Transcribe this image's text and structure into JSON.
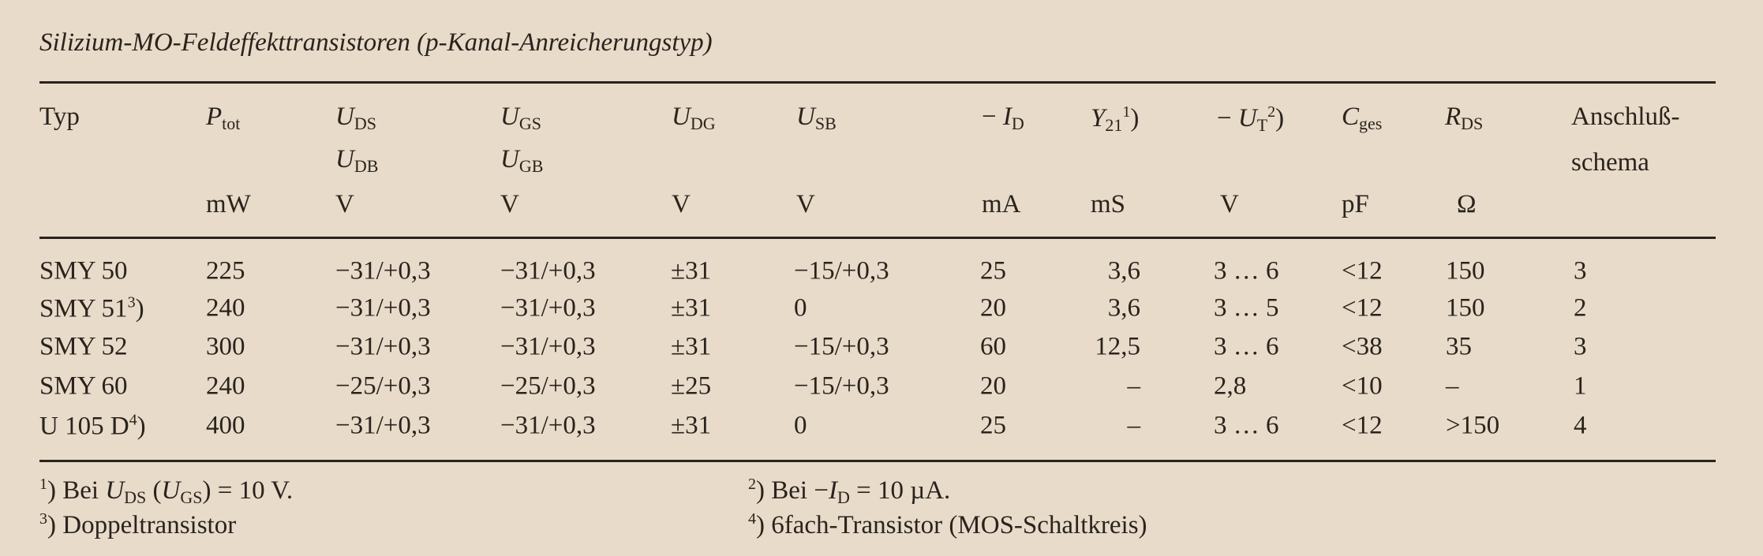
{
  "title": "Silizium-MO-Feldeffekttransistoren (p-Kanal-Anreicherungstyp)",
  "header": {
    "typ": "Typ",
    "ptot": {
      "sym": "P",
      "sub": "tot",
      "unit": "mW"
    },
    "uds": {
      "sym": "U",
      "sub": "DS",
      "sym2": "U",
      "sub2": "DB",
      "unit": "V"
    },
    "ugs": {
      "sym": "U",
      "sub": "GS",
      "sym2": "U",
      "sub2": "GB",
      "unit": "V"
    },
    "udg": {
      "sym": "U",
      "sub": "DG",
      "unit": "V"
    },
    "usb": {
      "sym": "U",
      "sub": "SB",
      "unit": "V"
    },
    "id": {
      "prefix": "−",
      "sym": "I",
      "sub": "D",
      "unit": "mA"
    },
    "y21": {
      "sym": "Y",
      "sub": "21",
      "sup": "1",
      "suffix": ")",
      "unit": "mS"
    },
    "ut": {
      "prefix": "−",
      "sym": "U",
      "sub": "T",
      "sup": "2",
      "suffix": ")",
      "unit": "V"
    },
    "cges": {
      "sym": "C",
      "sub": "ges",
      "unit": "pF"
    },
    "rds": {
      "sym": "R",
      "sub": "DS",
      "unit": "Ω"
    },
    "anschluss": {
      "line1": "Anschluß-",
      "line2": "schema"
    }
  },
  "rows": [
    {
      "typ": "SMY 50",
      "typ_sup": "",
      "ptot": "225",
      "uds": "−31/+0,3",
      "ugs": "−31/+0,3",
      "udg": "±31",
      "usb": "−15/+0,3",
      "id": "25",
      "y21": "3,6",
      "ut": "3 … 6",
      "cges": "<12",
      "rds": "150",
      "schema": "3"
    },
    {
      "typ": "SMY 51",
      "typ_sup": "3",
      "ptot": "240",
      "uds": "−31/+0,3",
      "ugs": "−31/+0,3",
      "udg": "±31",
      "usb": "0",
      "id": "20",
      "y21": "3,6",
      "ut": "3 … 5",
      "cges": "<12",
      "rds": "150",
      "schema": "2"
    },
    {
      "typ": "SMY 52",
      "typ_sup": "",
      "ptot": "300",
      "uds": "−31/+0,3",
      "ugs": "−31/+0,3",
      "udg": "±31",
      "usb": "−15/+0,3",
      "id": "60",
      "y21": "12,5",
      "ut": "3 … 6",
      "cges": "<38",
      "rds": "35",
      "schema": "3"
    },
    {
      "typ": "SMY 60",
      "typ_sup": "",
      "ptot": "240",
      "uds": "−25/+0,3",
      "ugs": "−25/+0,3",
      "udg": "±25",
      "usb": "−15/+0,3",
      "id": "20",
      "y21": "–",
      "ut": "2,8",
      "cges": "<10",
      "rds": "–",
      "schema": "1"
    },
    {
      "typ": "U 105 D",
      "typ_sup": "4",
      "ptot": "400",
      "uds": "−31/+0,3",
      "ugs": "−31/+0,3",
      "udg": "±31",
      "usb": "0",
      "id": "25",
      "y21": "–",
      "ut": "3 … 6",
      "cges": "<12",
      "rds": ">150",
      "schema": "4"
    }
  ],
  "footnotes": {
    "f1": {
      "mark": "1",
      "text_a": "Bei ",
      "sym_a": "U",
      "sub_a": "DS",
      "text_b": " (",
      "sym_b": "U",
      "sub_b": "GS",
      "text_c": ") = 10 V."
    },
    "f2": {
      "mark": "2",
      "text_a": "Bei −",
      "sym_a": "I",
      "sub_a": "D",
      "text_b": " = 10 µA."
    },
    "f3": {
      "mark": "3",
      "text": "Doppeltransistor"
    },
    "f4": {
      "mark": "4",
      "text": "6fach-Transistor (MOS-Schaltkreis)"
    }
  }
}
